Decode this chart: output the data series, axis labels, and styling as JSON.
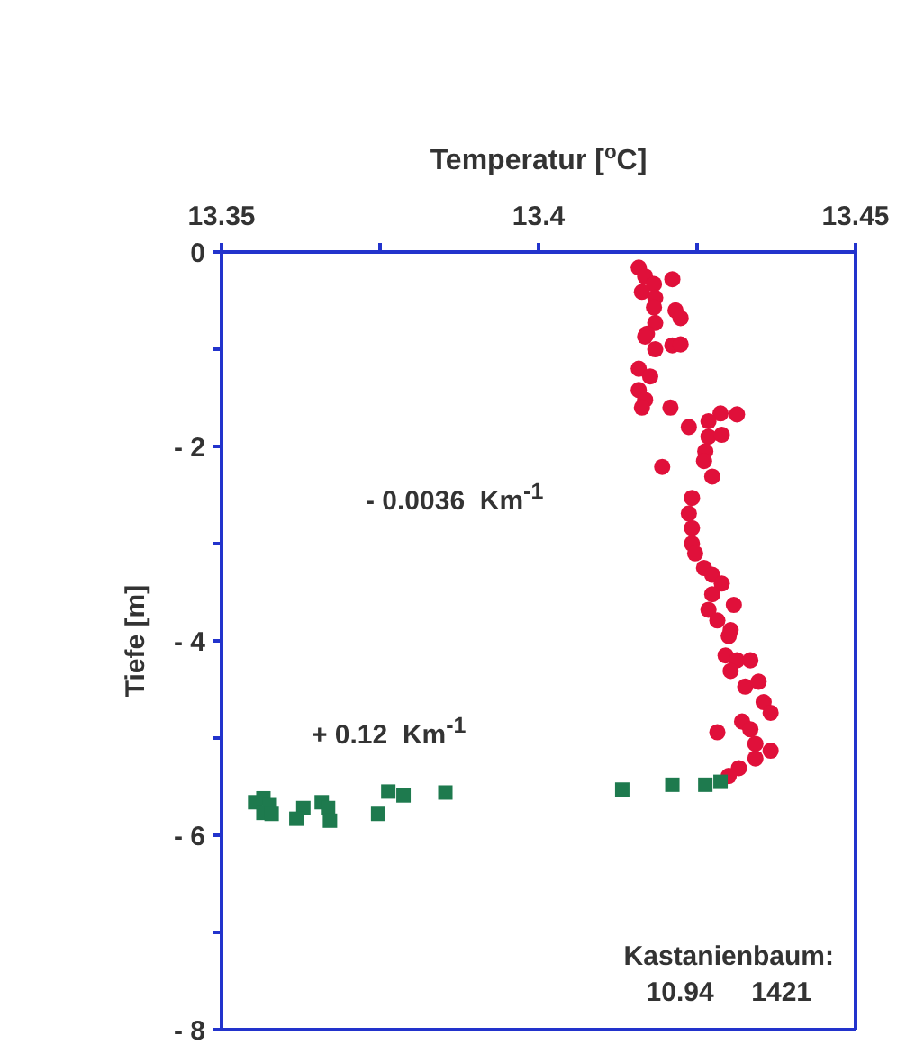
{
  "chart_data": {
    "type": "scatter",
    "xlabel": "Temperatur  [$^{o}$C]",
    "ylabel": "Tiefe  [m]",
    "xlim": [
      13.35,
      13.45
    ],
    "xticks": [
      13.35,
      {
        "value": 13.375,
        "label": null
      },
      13.4,
      {
        "value": 13.425,
        "label": null
      },
      13.45
    ],
    "ylim": [
      -8,
      0
    ],
    "yticks": [
      0,
      {
        "value": -1,
        "label": null
      },
      {
        "value": -2,
        "label": "- 2"
      },
      {
        "value": -3,
        "label": null
      },
      {
        "value": -4,
        "label": "- 4"
      },
      {
        "value": -5,
        "label": null
      },
      {
        "value": -6,
        "label": "- 6"
      },
      {
        "value": -7,
        "label": null
      },
      {
        "value": -8,
        "label": "- 8"
      }
    ],
    "legend": false,
    "series": [
      {
        "color": "#e0103a",
        "marker": "circle",
        "x": [
          13.4158,
          13.4168,
          13.4182,
          13.4163,
          13.4184,
          13.4182,
          13.4211,
          13.4216,
          13.4224,
          13.4184,
          13.4171,
          13.4168,
          13.4184,
          13.4211,
          13.4224,
          13.4158,
          13.4176,
          13.4158,
          13.4168,
          13.4163,
          13.4208,
          13.4287,
          13.4313,
          13.4268,
          13.4237,
          13.4268,
          13.4289,
          13.4263,
          13.4261,
          13.4195,
          13.4274,
          13.4242,
          13.4237,
          13.4242,
          13.4242,
          13.4247,
          13.4261,
          13.4274,
          13.4289,
          13.4274,
          13.4308,
          13.4268,
          13.4282,
          13.4303,
          13.43,
          13.4295,
          13.4313,
          13.4334,
          13.4303,
          13.4326,
          13.4347,
          13.4355,
          13.4366,
          13.4321,
          13.4334,
          13.4282,
          13.4342,
          13.4366,
          13.4342,
          13.4316,
          13.43
        ],
        "values": [
          -0.16,
          -0.25,
          -0.33,
          -0.41,
          -0.47,
          -0.57,
          -0.28,
          -0.6,
          -0.68,
          -0.73,
          -0.84,
          -0.87,
          -1.0,
          -0.96,
          -0.95,
          -1.2,
          -1.28,
          -1.42,
          -1.52,
          -1.6,
          -1.6,
          -1.66,
          -1.67,
          -1.74,
          -1.8,
          -1.9,
          -1.88,
          -2.05,
          -2.15,
          -2.21,
          -2.31,
          -2.53,
          -2.69,
          -2.84,
          -3.0,
          -3.1,
          -3.25,
          -3.32,
          -3.41,
          -3.52,
          -3.63,
          -3.68,
          -3.79,
          -3.89,
          -3.95,
          -4.15,
          -4.2,
          -4.2,
          -4.31,
          -4.47,
          -4.42,
          -4.63,
          -4.74,
          -4.83,
          -4.91,
          -4.94,
          -5.06,
          -5.13,
          -5.21,
          -5.31,
          -5.39
        ]
      },
      {
        "color": "#1e7a4e",
        "marker": "square",
        "x": [
          13.3553,
          13.3566,
          13.3576,
          13.3566,
          13.3579,
          13.3629,
          13.3618,
          13.3658,
          13.3668,
          13.3671,
          13.3747,
          13.3763,
          13.3787,
          13.3853,
          13.4132,
          13.4211,
          13.4263,
          13.4287
        ],
        "values": [
          -5.66,
          -5.62,
          -5.69,
          -5.77,
          -5.78,
          -5.72,
          -5.83,
          -5.66,
          -5.72,
          -5.85,
          -5.78,
          -5.55,
          -5.59,
          -5.56,
          -5.53,
          -5.48,
          -5.48,
          -5.45
        ]
      }
    ],
    "annotations": [
      "- 0.0036  Km$^{-1}$",
      "+ 0.12  Km$^{-1}$",
      "Kastanienbaum:",
      "10.94     1421"
    ]
  }
}
